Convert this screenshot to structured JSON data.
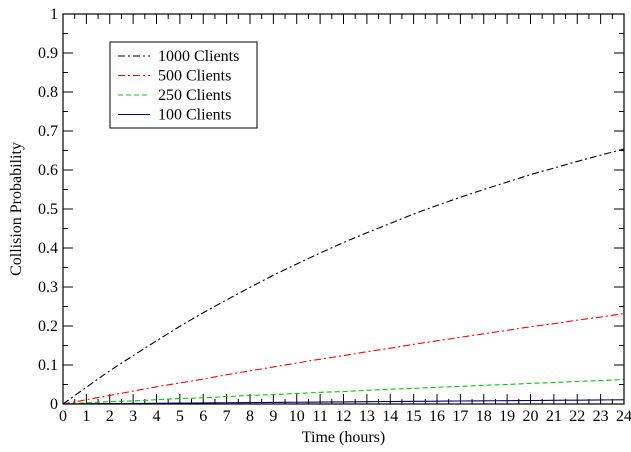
{
  "chart_data": {
    "type": "line",
    "xlabel": "Time (hours)",
    "ylabel": "Collision Probability",
    "xlim": [
      0,
      24
    ],
    "ylim": [
      0,
      1
    ],
    "x_ticks": [
      0,
      1,
      2,
      3,
      4,
      5,
      6,
      7,
      8,
      9,
      10,
      11,
      12,
      13,
      14,
      15,
      16,
      17,
      18,
      19,
      20,
      21,
      22,
      23,
      24
    ],
    "y_ticks": [
      0,
      0.1,
      0.2,
      0.3,
      0.4,
      0.5,
      0.6,
      0.7,
      0.8,
      0.9,
      1
    ],
    "y_tick_labels": [
      "0",
      "0.1",
      "0.2",
      "0.3",
      "0.4",
      "0.5",
      "0.6",
      "0.7",
      "0.8",
      "0.9",
      "1"
    ],
    "grid": false,
    "legend_position": "top-left",
    "x": [
      0,
      1,
      2,
      3,
      4,
      5,
      6,
      7,
      8,
      9,
      10,
      11,
      12,
      13,
      14,
      15,
      16,
      17,
      18,
      19,
      20,
      21,
      22,
      23,
      24
    ],
    "series": [
      {
        "name": "1000 Clients",
        "color": "#000000",
        "dash": "dash-dot",
        "values": [
          0,
          0.043,
          0.085,
          0.124,
          0.162,
          0.199,
          0.234,
          0.267,
          0.299,
          0.33,
          0.359,
          0.387,
          0.414,
          0.439,
          0.463,
          0.487,
          0.509,
          0.53,
          0.55,
          0.569,
          0.588,
          0.605,
          0.622,
          0.638,
          0.654
        ]
      },
      {
        "name": "500 Clients",
        "color": "#ff0000",
        "dash": "dash-dot",
        "values": [
          0,
          0.011,
          0.022,
          0.033,
          0.044,
          0.054,
          0.064,
          0.075,
          0.085,
          0.095,
          0.105,
          0.115,
          0.124,
          0.134,
          0.143,
          0.153,
          0.162,
          0.171,
          0.18,
          0.189,
          0.198,
          0.206,
          0.215,
          0.223,
          0.232
        ]
      },
      {
        "name": "250 Clients",
        "color": "#00cc00",
        "dash": "dashed",
        "values": [
          0,
          0.003,
          0.006,
          0.008,
          0.011,
          0.014,
          0.016,
          0.019,
          0.022,
          0.024,
          0.027,
          0.03,
          0.032,
          0.035,
          0.038,
          0.04,
          0.043,
          0.045,
          0.048,
          0.05,
          0.053,
          0.055,
          0.058,
          0.06,
          0.063
        ]
      },
      {
        "name": "100 Clients",
        "color": "#000080",
        "dash": "solid",
        "values": [
          0,
          0.0005,
          0.001,
          0.0014,
          0.0018,
          0.0023,
          0.0027,
          0.0032,
          0.0036,
          0.0041,
          0.0045,
          0.005,
          0.0054,
          0.0059,
          0.0063,
          0.0068,
          0.0072,
          0.0077,
          0.0081,
          0.0086,
          0.009,
          0.0095,
          0.0099,
          0.0104,
          0.0108
        ]
      }
    ]
  }
}
